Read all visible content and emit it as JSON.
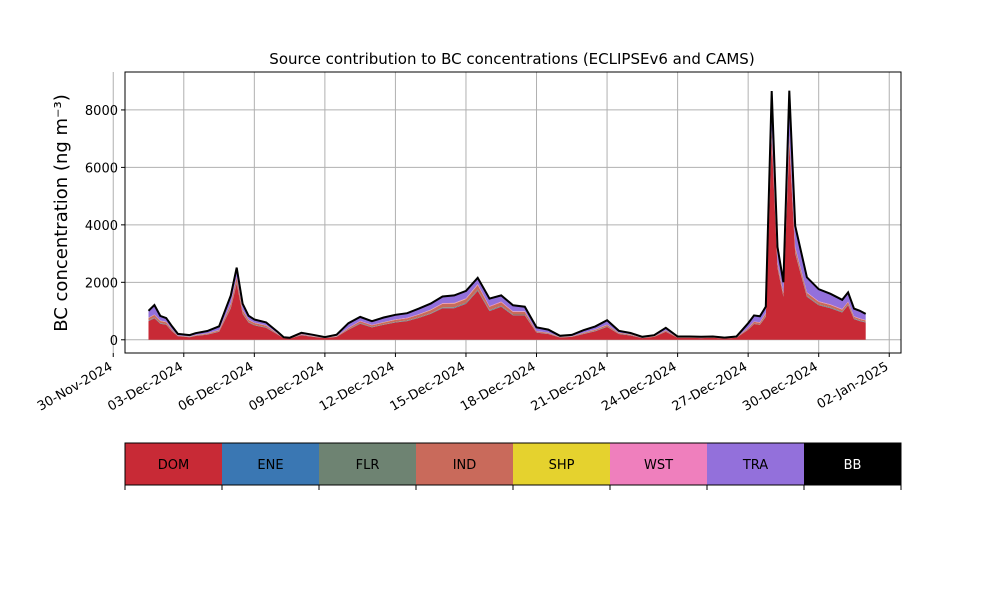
{
  "chart_data": {
    "type": "area",
    "title": "Source contribution to BC concentrations (ECLIPSEv6 and CAMS)",
    "ylabel": "BC concentration (ng m⁻³)",
    "xlabel": "",
    "ylim": [
      -460,
      9320
    ],
    "xlim": [
      "2024-11-30T12:00",
      "2025-01-02T12:00"
    ],
    "grid": true,
    "stacked": true,
    "y_ticks": [
      0,
      2000,
      4000,
      6000,
      8000
    ],
    "x_ticks": [
      "2024-11-30",
      "2024-12-03",
      "2024-12-06",
      "2024-12-09",
      "2024-12-12",
      "2024-12-15",
      "2024-12-18",
      "2024-12-21",
      "2024-12-24",
      "2024-12-27",
      "2024-12-30",
      "2025-01-02"
    ],
    "x_tick_labels": [
      "30-Nov-2024",
      "03-Dec-2024",
      "06-Dec-2024",
      "09-Dec-2024",
      "12-Dec-2024",
      "15-Dec-2024",
      "18-Dec-2024",
      "21-Dec-2024",
      "24-Dec-2024",
      "27-Dec-2024",
      "30-Dec-2024",
      "02-Jan-2025"
    ],
    "x": [
      "2024-12-01T12:00",
      "2024-12-01T18:00",
      "2024-12-02T00:00",
      "2024-12-02T06:00",
      "2024-12-02T12:00",
      "2024-12-02T18:00",
      "2024-12-03T06:00",
      "2024-12-03T12:00",
      "2024-12-04T00:00",
      "2024-12-04T12:00",
      "2024-12-05T00:00",
      "2024-12-05T06:00",
      "2024-12-05T12:00",
      "2024-12-05T18:00",
      "2024-12-06T00:00",
      "2024-12-06T12:00",
      "2024-12-07T00:00",
      "2024-12-07T06:00",
      "2024-12-07T12:00",
      "2024-12-08T00:00",
      "2024-12-08T12:00",
      "2024-12-09T00:00",
      "2024-12-09T12:00",
      "2024-12-10T00:00",
      "2024-12-10T12:00",
      "2024-12-11T00:00",
      "2024-12-11T12:00",
      "2024-12-12T00:00",
      "2024-12-12T12:00",
      "2024-12-13T00:00",
      "2024-12-13T12:00",
      "2024-12-14T00:00",
      "2024-12-14T12:00",
      "2024-12-15T00:00",
      "2024-12-15T12:00",
      "2024-12-16T00:00",
      "2024-12-16T12:00",
      "2024-12-17T00:00",
      "2024-12-17T12:00",
      "2024-12-18T00:00",
      "2024-12-18T12:00",
      "2024-12-19T00:00",
      "2024-12-19T12:00",
      "2024-12-20T00:00",
      "2024-12-20T12:00",
      "2024-12-21T00:00",
      "2024-12-21T12:00",
      "2024-12-22T00:00",
      "2024-12-22T12:00",
      "2024-12-23T00:00",
      "2024-12-23T12:00",
      "2024-12-24T00:00",
      "2024-12-24T12:00",
      "2024-12-25T00:00",
      "2024-12-25T12:00",
      "2024-12-26T00:00",
      "2024-12-26T12:00",
      "2024-12-27T00:00",
      "2024-12-27T06:00",
      "2024-12-27T12:00",
      "2024-12-27T18:00",
      "2024-12-28T00:00",
      "2024-12-28T06:00",
      "2024-12-28T12:00",
      "2024-12-28T18:00",
      "2024-12-29T00:00",
      "2024-12-29T12:00",
      "2024-12-30T00:00",
      "2024-12-30T12:00",
      "2024-12-31T00:00",
      "2024-12-31T06:00",
      "2024-12-31T12:00",
      "2024-12-31T18:00",
      "2025-01-01T00:00"
    ],
    "series": [
      {
        "name": "DOM",
        "color": "#c82a36",
        "values": [
          650,
          750,
          560,
          520,
          300,
          120,
          90,
          130,
          180,
          280,
          1100,
          1950,
          900,
          600,
          500,
          420,
          180,
          50,
          40,
          160,
          100,
          60,
          100,
          350,
          560,
          430,
          520,
          600,
          650,
          760,
          900,
          1100,
          1100,
          1250,
          1700,
          1000,
          1150,
          850,
          850,
          250,
          200,
          80,
          100,
          200,
          300,
          450,
          200,
          150,
          60,
          100,
          280,
          70,
          70,
          60,
          70,
          40,
          70,
          350,
          550,
          520,
          800,
          7000,
          2500,
          1500,
          6800,
          3000,
          1500,
          1200,
          1100,
          950,
          1200,
          720,
          650,
          600
        ]
      },
      {
        "name": "ENE",
        "color": "#3a77b3",
        "values": [
          10,
          10,
          10,
          10,
          5,
          5,
          5,
          5,
          5,
          5,
          10,
          15,
          10,
          8,
          8,
          8,
          5,
          2,
          2,
          5,
          5,
          2,
          5,
          5,
          8,
          8,
          8,
          8,
          8,
          10,
          10,
          10,
          12,
          12,
          15,
          12,
          12,
          10,
          10,
          5,
          5,
          2,
          2,
          5,
          5,
          5,
          5,
          5,
          2,
          2,
          5,
          2,
          2,
          2,
          2,
          2,
          2,
          5,
          5,
          5,
          10,
          20,
          15,
          10,
          20,
          15,
          10,
          10,
          10,
          10,
          10,
          8,
          8,
          8
        ]
      },
      {
        "name": "FLR",
        "color": "#6e8372",
        "values": [
          15,
          15,
          15,
          15,
          10,
          5,
          5,
          5,
          5,
          10,
          20,
          30,
          20,
          15,
          15,
          15,
          5,
          2,
          2,
          5,
          5,
          2,
          5,
          10,
          15,
          15,
          15,
          15,
          15,
          20,
          20,
          20,
          25,
          25,
          30,
          25,
          25,
          20,
          20,
          10,
          10,
          5,
          5,
          10,
          10,
          10,
          10,
          10,
          5,
          5,
          10,
          5,
          5,
          5,
          5,
          5,
          5,
          10,
          10,
          10,
          20,
          40,
          30,
          20,
          40,
          30,
          20,
          20,
          20,
          20,
          20,
          15,
          15,
          15
        ]
      },
      {
        "name": "IND",
        "color": "#c96a5b",
        "values": [
          80,
          90,
          70,
          65,
          40,
          15,
          12,
          20,
          25,
          40,
          120,
          180,
          100,
          70,
          60,
          50,
          20,
          8,
          6,
          20,
          15,
          8,
          15,
          40,
          60,
          50,
          60,
          70,
          75,
          85,
          100,
          120,
          120,
          130,
          160,
          110,
          120,
          90,
          90,
          30,
          25,
          10,
          12,
          25,
          35,
          50,
          25,
          18,
          8,
          12,
          30,
          8,
          8,
          8,
          8,
          5,
          8,
          40,
          60,
          60,
          90,
          200,
          120,
          80,
          200,
          150,
          100,
          90,
          80,
          70,
          80,
          60,
          55,
          50
        ]
      },
      {
        "name": "SHP",
        "color": "#e5d22e",
        "values": [
          5,
          5,
          5,
          5,
          3,
          2,
          2,
          2,
          2,
          3,
          5,
          8,
          5,
          4,
          4,
          4,
          2,
          1,
          1,
          2,
          2,
          1,
          2,
          3,
          4,
          4,
          4,
          4,
          4,
          5,
          5,
          5,
          6,
          6,
          8,
          6,
          6,
          5,
          5,
          3,
          3,
          2,
          2,
          3,
          3,
          3,
          3,
          3,
          2,
          2,
          3,
          2,
          2,
          2,
          2,
          2,
          2,
          3,
          3,
          3,
          5,
          10,
          8,
          5,
          10,
          8,
          5,
          5,
          5,
          5,
          5,
          4,
          4,
          4
        ]
      },
      {
        "name": "WST",
        "color": "#ef7fbd",
        "values": [
          10,
          10,
          10,
          10,
          5,
          3,
          3,
          3,
          5,
          5,
          15,
          20,
          12,
          10,
          10,
          8,
          5,
          2,
          2,
          5,
          5,
          2,
          5,
          8,
          10,
          10,
          10,
          12,
          12,
          15,
          15,
          20,
          20,
          20,
          25,
          20,
          20,
          15,
          15,
          8,
          8,
          3,
          3,
          5,
          8,
          10,
          5,
          5,
          3,
          3,
          5,
          3,
          3,
          3,
          3,
          2,
          3,
          8,
          10,
          10,
          15,
          40,
          25,
          20,
          40,
          30,
          20,
          15,
          15,
          15,
          15,
          12,
          12,
          10
        ]
      },
      {
        "name": "TRA",
        "color": "#9370db",
        "values": [
          230,
          320,
          150,
          120,
          100,
          50,
          40,
          60,
          80,
          120,
          250,
          280,
          200,
          120,
          100,
          90,
          50,
          20,
          15,
          40,
          35,
          15,
          40,
          150,
          130,
          120,
          150,
          150,
          150,
          180,
          200,
          220,
          250,
          250,
          200,
          250,
          200,
          200,
          150,
          120,
          100,
          30,
          40,
          80,
          100,
          150,
          60,
          40,
          20,
          30,
          80,
          20,
          20,
          20,
          20,
          15,
          20,
          150,
          200,
          200,
          200,
          1300,
          500,
          350,
          1500,
          700,
          500,
          400,
          350,
          300,
          300,
          250,
          250,
          200
        ]
      },
      {
        "name": "BB",
        "color": "#000000",
        "values": [
          10,
          10,
          10,
          10,
          5,
          5,
          5,
          5,
          5,
          5,
          20,
          30,
          10,
          10,
          10,
          10,
          5,
          2,
          2,
          5,
          5,
          2,
          5,
          10,
          10,
          10,
          10,
          10,
          10,
          10,
          10,
          10,
          10,
          10,
          20,
          10,
          10,
          10,
          10,
          5,
          5,
          5,
          5,
          5,
          5,
          5,
          5,
          5,
          5,
          5,
          5,
          5,
          5,
          5,
          5,
          5,
          5,
          10,
          10,
          10,
          10,
          50,
          30,
          20,
          60,
          30,
          20,
          20,
          20,
          20,
          20,
          15,
          15,
          15
        ]
      }
    ],
    "legend": {
      "placement": "bottom colorbar",
      "entries": [
        {
          "label": "DOM",
          "color": "#c82a36",
          "text_color": "#000000"
        },
        {
          "label": "ENE",
          "color": "#3a77b3",
          "text_color": "#000000"
        },
        {
          "label": "FLR",
          "color": "#6e8372",
          "text_color": "#000000"
        },
        {
          "label": "IND",
          "color": "#c96a5b",
          "text_color": "#000000"
        },
        {
          "label": "SHP",
          "color": "#e5d22e",
          "text_color": "#000000"
        },
        {
          "label": "WST",
          "color": "#ef7fbd",
          "text_color": "#000000"
        },
        {
          "label": "TRA",
          "color": "#9370db",
          "text_color": "#000000"
        },
        {
          "label": "BB",
          "color": "#000000",
          "text_color": "#ffffff"
        }
      ]
    }
  }
}
